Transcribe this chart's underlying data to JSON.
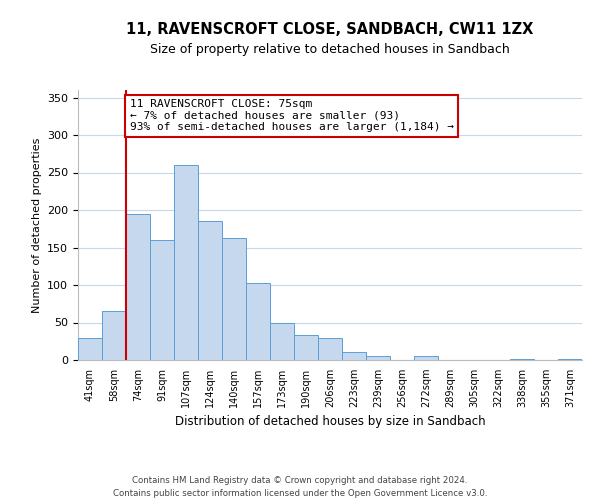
{
  "title": "11, RAVENSCROFT CLOSE, SANDBACH, CW11 1ZX",
  "subtitle": "Size of property relative to detached houses in Sandbach",
  "xlabel": "Distribution of detached houses by size in Sandbach",
  "ylabel": "Number of detached properties",
  "bar_labels": [
    "41sqm",
    "58sqm",
    "74sqm",
    "91sqm",
    "107sqm",
    "124sqm",
    "140sqm",
    "157sqm",
    "173sqm",
    "190sqm",
    "206sqm",
    "223sqm",
    "239sqm",
    "256sqm",
    "272sqm",
    "289sqm",
    "305sqm",
    "322sqm",
    "338sqm",
    "355sqm",
    "371sqm"
  ],
  "bar_values": [
    30,
    65,
    195,
    160,
    260,
    185,
    163,
    103,
    50,
    33,
    30,
    11,
    5,
    0,
    5,
    0,
    0,
    0,
    1,
    0,
    1
  ],
  "bar_color": "#c5d8ed",
  "bar_edge_color": "#5a9fd4",
  "highlight_line_color": "#cc0000",
  "annotation_title": "11 RAVENSCROFT CLOSE: 75sqm",
  "annotation_line1": "← 7% of detached houses are smaller (93)",
  "annotation_line2": "93% of semi-detached houses are larger (1,184) →",
  "annotation_box_color": "#ffffff",
  "annotation_box_edge_color": "#cc0000",
  "ylim": [
    0,
    360
  ],
  "yticks": [
    0,
    50,
    100,
    150,
    200,
    250,
    300,
    350
  ],
  "footer_line1": "Contains HM Land Registry data © Crown copyright and database right 2024.",
  "footer_line2": "Contains public sector information licensed under the Open Government Licence v3.0.",
  "background_color": "#ffffff",
  "grid_color": "#c8d8e8"
}
